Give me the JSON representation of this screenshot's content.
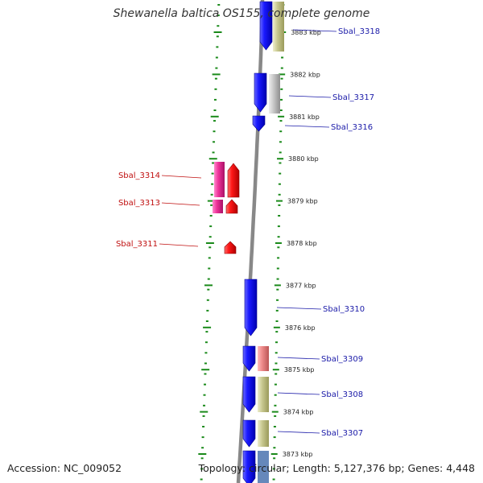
{
  "title": "Shewanella baltica OS155, complete genome",
  "accession_text": "Accession: NC_009052",
  "topology_text": "Topology: circular; Length: 5,127,376 bp; Genes: 4,448",
  "colors": {
    "forward_cds": "#1010ee",
    "reverse_cds": "#ee1010",
    "reverse_feature": "#ee3399",
    "forward_label": "#1a1aa8",
    "reverse_label": "#c01010",
    "tick_green": "#1a8a1a",
    "backbone": "#888888"
  },
  "kbp_ticks": [
    {
      "kbp": 3883,
      "label": "3883 kbp"
    },
    {
      "kbp": 3882,
      "label": "3882 kbp"
    },
    {
      "kbp": 3881,
      "label": "3881 kbp"
    },
    {
      "kbp": 3880,
      "label": "3880 kbp"
    },
    {
      "kbp": 3879,
      "label": "3879 kbp"
    },
    {
      "kbp": 3878,
      "label": "3878 kbp"
    },
    {
      "kbp": 3877,
      "label": "3877 kbp"
    },
    {
      "kbp": 3876,
      "label": "3876 kbp"
    },
    {
      "kbp": 3875,
      "label": "3875 kbp"
    },
    {
      "kbp": 3874,
      "label": "3874 kbp"
    },
    {
      "kbp": 3873,
      "label": "3873 kbp"
    }
  ],
  "forward_genes": [
    {
      "label": "Sbal_3318",
      "kbp": 3883.35,
      "companion_color": "#b8b878"
    },
    {
      "label": "Sbal_3317",
      "kbp": 3881.8,
      "companion_color": "#b4b4b4"
    },
    {
      "label": "Sbal_3316",
      "kbp": 3881.0
    },
    {
      "label": "Sbal_3310",
      "kbp": 3876.65
    },
    {
      "label": "Sbal_3309",
      "kbp": 3875.25,
      "companion_color": "#e88080"
    },
    {
      "label": "Sbal_3308",
      "kbp": 3874.5,
      "companion_color": "#b8b878"
    },
    {
      "label": "Sbal_3307",
      "kbp": 3873.5,
      "companion_color": "#b8b878"
    }
  ],
  "reverse_genes": [
    {
      "label": "Sbal_3314",
      "kbp": 3879.55
    },
    {
      "label": "Sbal_3313",
      "kbp": 3878.95
    },
    {
      "label": "Sbal_3311",
      "kbp": 3877.9
    }
  ]
}
